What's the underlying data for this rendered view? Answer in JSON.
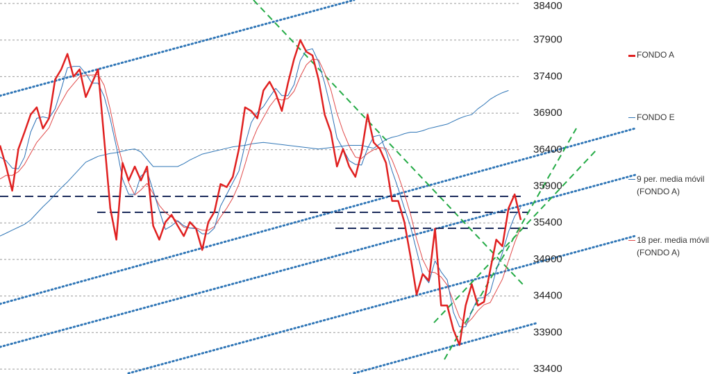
{
  "chart_data": {
    "type": "line",
    "ylim": [
      33400,
      38400
    ],
    "yticks": [
      33400,
      33900,
      34400,
      34900,
      35400,
      35900,
      36400,
      36900,
      37400,
      37900,
      38400
    ],
    "grid": true,
    "legend": "right",
    "series": [
      {
        "name": "FONDO A",
        "color": "#e02020",
        "width": 2.5,
        "values": [
          36460,
          36170,
          35840,
          36410,
          36640,
          36880,
          36980,
          36690,
          36830,
          37360,
          37500,
          37710,
          37400,
          37500,
          37120,
          37310,
          37500,
          36550,
          35600,
          35170,
          36220,
          35980,
          36170,
          35980,
          36170,
          35360,
          35170,
          35410,
          35510,
          35360,
          35220,
          35410,
          35320,
          35030,
          35410,
          35550,
          35930,
          35890,
          36030,
          36410,
          36980,
          36930,
          36830,
          37210,
          37330,
          37170,
          36930,
          37310,
          37640,
          37900,
          37740,
          37690,
          37360,
          36880,
          36640,
          36170,
          36410,
          36170,
          36030,
          36360,
          36880,
          36500,
          36410,
          36220,
          35700,
          35700,
          35410,
          34940,
          34420,
          34700,
          34610,
          35320,
          34270,
          34270,
          33940,
          33730,
          34270,
          34560,
          34270,
          34320,
          34750,
          35170,
          35080,
          35600,
          35790,
          35440
        ]
      },
      {
        "name": "FONDO E",
        "color": "#2e75b6",
        "width": 1,
        "values": [
          35220,
          35260,
          35300,
          35340,
          35380,
          35440,
          35530,
          35620,
          35700,
          35790,
          35880,
          35960,
          36050,
          36140,
          36230,
          36270,
          36310,
          36330,
          36350,
          36360,
          36380,
          36400,
          36410,
          36370,
          36270,
          36170,
          36170,
          36170,
          36170,
          36170,
          36210,
          36260,
          36300,
          36340,
          36360,
          36380,
          36400,
          36420,
          36440,
          36450,
          36460,
          36480,
          36490,
          36500,
          36490,
          36480,
          36470,
          36460,
          36450,
          36440,
          36430,
          36420,
          36410,
          36420,
          36430,
          36440,
          36450,
          36460,
          36460,
          36460,
          36440,
          36420,
          36480,
          36540,
          36570,
          36590,
          36620,
          36640,
          36640,
          36660,
          36690,
          36710,
          36730,
          36750,
          36790,
          36830,
          36860,
          36880,
          36960,
          37020,
          37090,
          37140,
          37180,
          37210,
          null,
          null
        ]
      },
      {
        "name": "9 per. media móvil (FONDO A)",
        "color": "#2a6fb5",
        "width": 1,
        "values": [
          36300,
          36250,
          36150,
          36140,
          36300,
          36640,
          36830,
          36850,
          36830,
          36960,
          37230,
          37520,
          37540,
          37540,
          37440,
          37310,
          37310,
          37130,
          36820,
          36440,
          36000,
          35790,
          35790,
          36040,
          36110,
          35840,
          35570,
          35310,
          35360,
          35430,
          35360,
          35330,
          35320,
          35250,
          35250,
          35330,
          35630,
          35790,
          35950,
          36110,
          36470,
          36770,
          36910,
          36990,
          37120,
          37240,
          37140,
          37140,
          37290,
          37620,
          37760,
          37780,
          37600,
          37310,
          36960,
          36560,
          36410,
          36250,
          36200,
          36190,
          36420,
          36580,
          36600,
          36380,
          36110,
          35870,
          35600,
          35350,
          35020,
          34690,
          34580,
          34880,
          34730,
          34620,
          34180,
          33980,
          33980,
          34190,
          34370,
          34380,
          34450,
          34750,
          34990,
          35280,
          35490,
          35610
        ]
      },
      {
        "name": "18 per. media móvil (FONDO A)",
        "color": "#e04848",
        "width": 1,
        "values": [
          36000,
          36050,
          36050,
          36100,
          36200,
          36350,
          36500,
          36600,
          36700,
          36900,
          37050,
          37200,
          37300,
          37400,
          37420,
          37420,
          37430,
          37280,
          36950,
          36540,
          36220,
          35950,
          35780,
          35850,
          35940,
          35800,
          35640,
          35540,
          35480,
          35420,
          35340,
          35330,
          35330,
          35300,
          35300,
          35350,
          35480,
          35600,
          35740,
          35930,
          36200,
          36490,
          36690,
          36840,
          36990,
          37100,
          37080,
          37100,
          37200,
          37400,
          37560,
          37640,
          37630,
          37450,
          37220,
          36900,
          36650,
          36450,
          36300,
          36280,
          36350,
          36400,
          36430,
          36420,
          36260,
          36050,
          35800,
          35520,
          35180,
          34900,
          34730,
          34720,
          34660,
          34550,
          34330,
          34110,
          34010,
          34090,
          34200,
          34280,
          34310,
          34470,
          34630,
          34880,
          35130,
          35340
        ]
      }
    ]
  }
}
